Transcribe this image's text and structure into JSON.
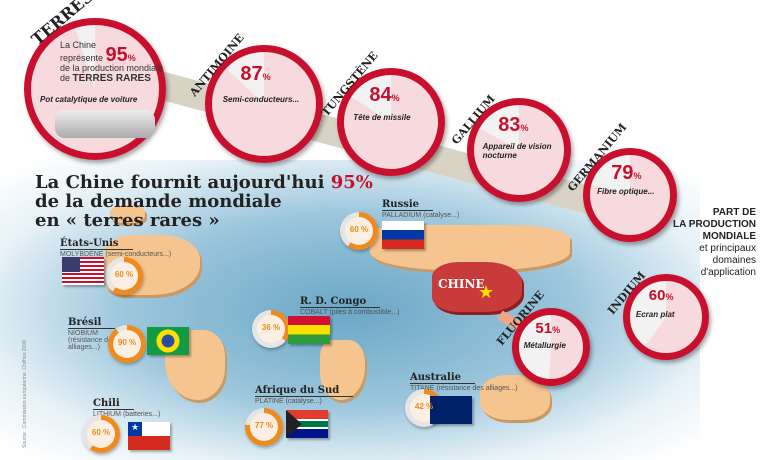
{
  "title": {
    "line1_prefix": "La Chine fournit aujourd'hui ",
    "line1_highlight": "95%",
    "line2": "de la demande mondiale",
    "line3": "en « terres rares »"
  },
  "main_circle": {
    "name": "TERRES RARES",
    "text1": "La Chine",
    "text2": "représente",
    "percent": "95",
    "unit": "%",
    "text3": "de la production mondiale",
    "text4_prefix": "de",
    "text4_name": "TERRES RARES",
    "application": "Pot catalytique de voiture",
    "value": 95
  },
  "elements": [
    {
      "name": "ANTIMOINE",
      "percent": "87",
      "unit": "%",
      "application": "Semi-conducteurs...",
      "value": 87
    },
    {
      "name": "TUNGSTÈNE",
      "percent": "84",
      "unit": "%",
      "application": "Tête de missile",
      "value": 84
    },
    {
      "name": "GALLIUM",
      "percent": "83",
      "unit": "%",
      "application": "Appareil de vision nocturne",
      "value": 83
    },
    {
      "name": "GERMANIUM",
      "percent": "79",
      "unit": "%",
      "application": "Fibre optique...",
      "value": 79
    },
    {
      "name": "INDIUM",
      "percent": "60",
      "unit": "%",
      "application": "Ecran plat",
      "value": 60
    },
    {
      "name": "FLUORINE",
      "percent": "51",
      "unit": "%",
      "application": "Métallurgie",
      "value": 51
    }
  ],
  "legend": {
    "line1": "PART DE",
    "line2": "LA PRODUCTION",
    "line3": "MONDIALE",
    "line4": "et principaux",
    "line5": "domaines",
    "line6": "d'application"
  },
  "china_label": "CHINE",
  "countries": [
    {
      "name": "États-Unis",
      "metal": "MOLYBDÈNE",
      "use": "(semi-conducteurs...)",
      "percent": "60 %",
      "value": 60
    },
    {
      "name": "Brésil",
      "metal": "NIOBIUM",
      "use": "(résistance des alliages...)",
      "percent": "90 %",
      "value": 90
    },
    {
      "name": "Chili",
      "metal": "LITHIUM",
      "use": "(batteries...)",
      "percent": "60 %",
      "value": 60
    },
    {
      "name": "R. D. Congo",
      "metal": "COBALT",
      "use": "(piles à combustible...)",
      "percent": "36 %",
      "value": 36
    },
    {
      "name": "Afrique du Sud",
      "metal": "PLATINE",
      "use": "(catalyse...)",
      "percent": "77 %",
      "value": 77
    },
    {
      "name": "Russie",
      "metal": "PALLADIUM",
      "use": "(catalyse...)",
      "percent": "60 %",
      "value": 60
    },
    {
      "name": "Australie",
      "metal": "TITANE",
      "use": "(résistance des alliages...)",
      "percent": "42 %",
      "value": 42
    }
  ],
  "source": "Source : Commission européenne. Chiffres 2006",
  "colors": {
    "accent_red": "#c8102e",
    "donut_orange": "#f08a1c",
    "land": "#f6c58f",
    "ocean": "#6aa7c6"
  }
}
